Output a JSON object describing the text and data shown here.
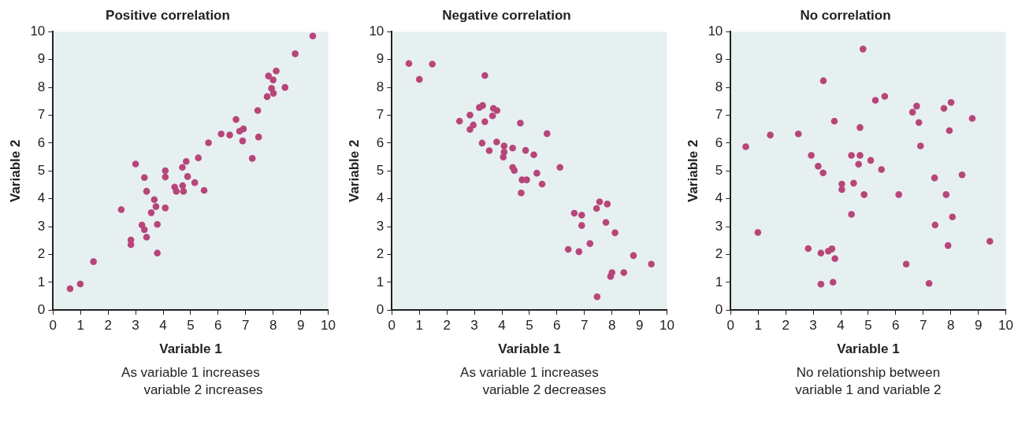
{
  "chart_data": [
    {
      "type": "scatter",
      "title": "Positive correlation",
      "xlabel": "Variable 1",
      "ylabel": "Variable 2",
      "xlim": [
        0,
        10
      ],
      "ylim": [
        0,
        10
      ],
      "xticks": [
        0,
        1,
        2,
        3,
        4,
        5,
        6,
        7,
        8,
        9,
        10
      ],
      "yticks": [
        0,
        1,
        2,
        3,
        4,
        5,
        6,
        7,
        8,
        9,
        10
      ],
      "grid": false,
      "legend": false,
      "marker": "circle",
      "annotations": [
        "As variable 1 increases\n      variable 2 increases"
      ],
      "series": [
        {
          "color": "#b8457a",
          "x": [
            0.62,
            0.99,
            1.47,
            2.48,
            3.0,
            2.83,
            2.83,
            3.23,
            3.32,
            3.4,
            3.32,
            3.4,
            3.68,
            3.74,
            3.57,
            3.79,
            3.79,
            4.08,
            4.08,
            4.08,
            4.42,
            4.48,
            4.71,
            4.74,
            4.7,
            4.84,
            4.89,
            5.15,
            5.28,
            5.49,
            5.65,
            6.11,
            6.42,
            6.65,
            6.78,
            6.92,
            6.89,
            7.24,
            7.47,
            7.44,
            7.78,
            7.83,
            7.94,
            8.01,
            8.0,
            8.11,
            8.43,
            8.8,
            9.44
          ],
          "values": [
            0.77,
            0.94,
            1.74,
            3.61,
            5.25,
            2.52,
            2.35,
            3.06,
            2.89,
            2.62,
            4.76,
            4.27,
            3.97,
            3.72,
            3.5,
            3.08,
            2.05,
            5.01,
            4.78,
            3.67,
            4.42,
            4.27,
            4.47,
            4.27,
            5.13,
            5.34,
            4.8,
            4.58,
            5.47,
            4.3,
            6.01,
            6.33,
            6.29,
            6.85,
            6.43,
            6.51,
            6.08,
            5.45,
            6.22,
            7.17,
            7.67,
            8.41,
            7.97,
            7.79,
            8.27,
            8.59,
            8.0,
            9.21,
            9.85
          ]
        }
      ]
    },
    {
      "type": "scatter",
      "title": "Negative correlation",
      "xlabel": "Variable 1",
      "ylabel": "Variable 2",
      "xlim": [
        0,
        10
      ],
      "ylim": [
        0,
        10
      ],
      "xticks": [
        0,
        1,
        2,
        3,
        4,
        5,
        6,
        7,
        8,
        9,
        10
      ],
      "yticks": [
        0,
        1,
        2,
        3,
        4,
        5,
        6,
        7,
        8,
        9,
        10
      ],
      "grid": false,
      "legend": false,
      "marker": "circle",
      "annotations": [
        "As variable 1 increases\n      variable 2 decreases"
      ],
      "series": [
        {
          "color": "#b8457a",
          "x": [
            0.62,
            1.0,
            1.47,
            3.38,
            3.18,
            3.3,
            3.69,
            3.82,
            3.66,
            2.84,
            2.46,
            3.38,
            2.96,
            2.84,
            4.67,
            5.64,
            3.28,
            3.81,
            4.08,
            4.39,
            3.54,
            4.08,
            4.05,
            4.86,
            5.16,
            6.11,
            4.39,
            4.45,
            5.27,
            4.73,
            4.9,
            5.46,
            4.7,
            7.55,
            7.83,
            7.44,
            6.63,
            6.9,
            6.9,
            7.78,
            8.11,
            7.2,
            6.41,
            6.8,
            8.78,
            9.43,
            8.0,
            7.95,
            8.43,
            7.46
          ],
          "values": [
            8.86,
            8.29,
            8.84,
            8.43,
            7.28,
            7.35,
            7.25,
            7.17,
            6.98,
            7.01,
            6.79,
            6.77,
            6.65,
            6.49,
            6.72,
            6.34,
            6.0,
            6.04,
            5.9,
            5.82,
            5.73,
            5.68,
            5.5,
            5.74,
            5.58,
            5.13,
            5.13,
            5.02,
            4.92,
            4.68,
            4.68,
            4.53,
            4.21,
            3.89,
            3.81,
            3.65,
            3.48,
            3.41,
            3.04,
            3.15,
            2.78,
            2.39,
            2.18,
            2.1,
            1.96,
            1.65,
            1.35,
            1.21,
            1.35,
            0.48
          ]
        }
      ]
    },
    {
      "type": "scatter",
      "title": "No correlation",
      "xlabel": "Variable 1",
      "ylabel": "Variable 2",
      "xlim": [
        0,
        10
      ],
      "ylim": [
        0,
        10
      ],
      "xticks": [
        0,
        1,
        2,
        3,
        4,
        5,
        6,
        7,
        8,
        9,
        10
      ],
      "yticks": [
        0,
        1,
        2,
        3,
        4,
        5,
        6,
        7,
        8,
        9,
        10
      ],
      "grid": false,
      "legend": false,
      "marker": "circle",
      "annotations": [
        "No relationship between\nvariable 1 and variable 2"
      ],
      "series": [
        {
          "color": "#b8457a",
          "x": [
            4.81,
            3.37,
            5.26,
            5.6,
            6.76,
            6.61,
            7.75,
            8.01,
            8.78,
            3.77,
            6.84,
            4.7,
            7.95,
            1.44,
            2.46,
            0.55,
            6.9,
            2.93,
            4.39,
            4.7,
            4.65,
            5.09,
            3.18,
            5.48,
            3.36,
            8.41,
            7.41,
            4.04,
            4.47,
            4.04,
            4.85,
            6.11,
            7.83,
            4.39,
            8.06,
            7.43,
            0.99,
            9.42,
            7.9,
            2.82,
            3.68,
            3.55,
            3.28,
            3.79,
            6.38,
            3.28,
            3.72,
            7.21
          ],
          "values": [
            9.38,
            8.24,
            7.54,
            7.68,
            7.33,
            7.11,
            7.25,
            7.46,
            6.89,
            6.79,
            6.74,
            6.56,
            6.45,
            6.29,
            6.33,
            5.87,
            5.9,
            5.56,
            5.56,
            5.56,
            5.24,
            5.38,
            5.17,
            5.05,
            4.93,
            4.86,
            4.75,
            4.53,
            4.56,
            4.33,
            4.15,
            4.15,
            4.15,
            3.44,
            3.35,
            3.06,
            2.79,
            2.47,
            2.32,
            2.21,
            2.2,
            2.12,
            2.05,
            1.85,
            1.65,
            0.93,
            1.0,
            0.96
          ]
        }
      ]
    }
  ]
}
